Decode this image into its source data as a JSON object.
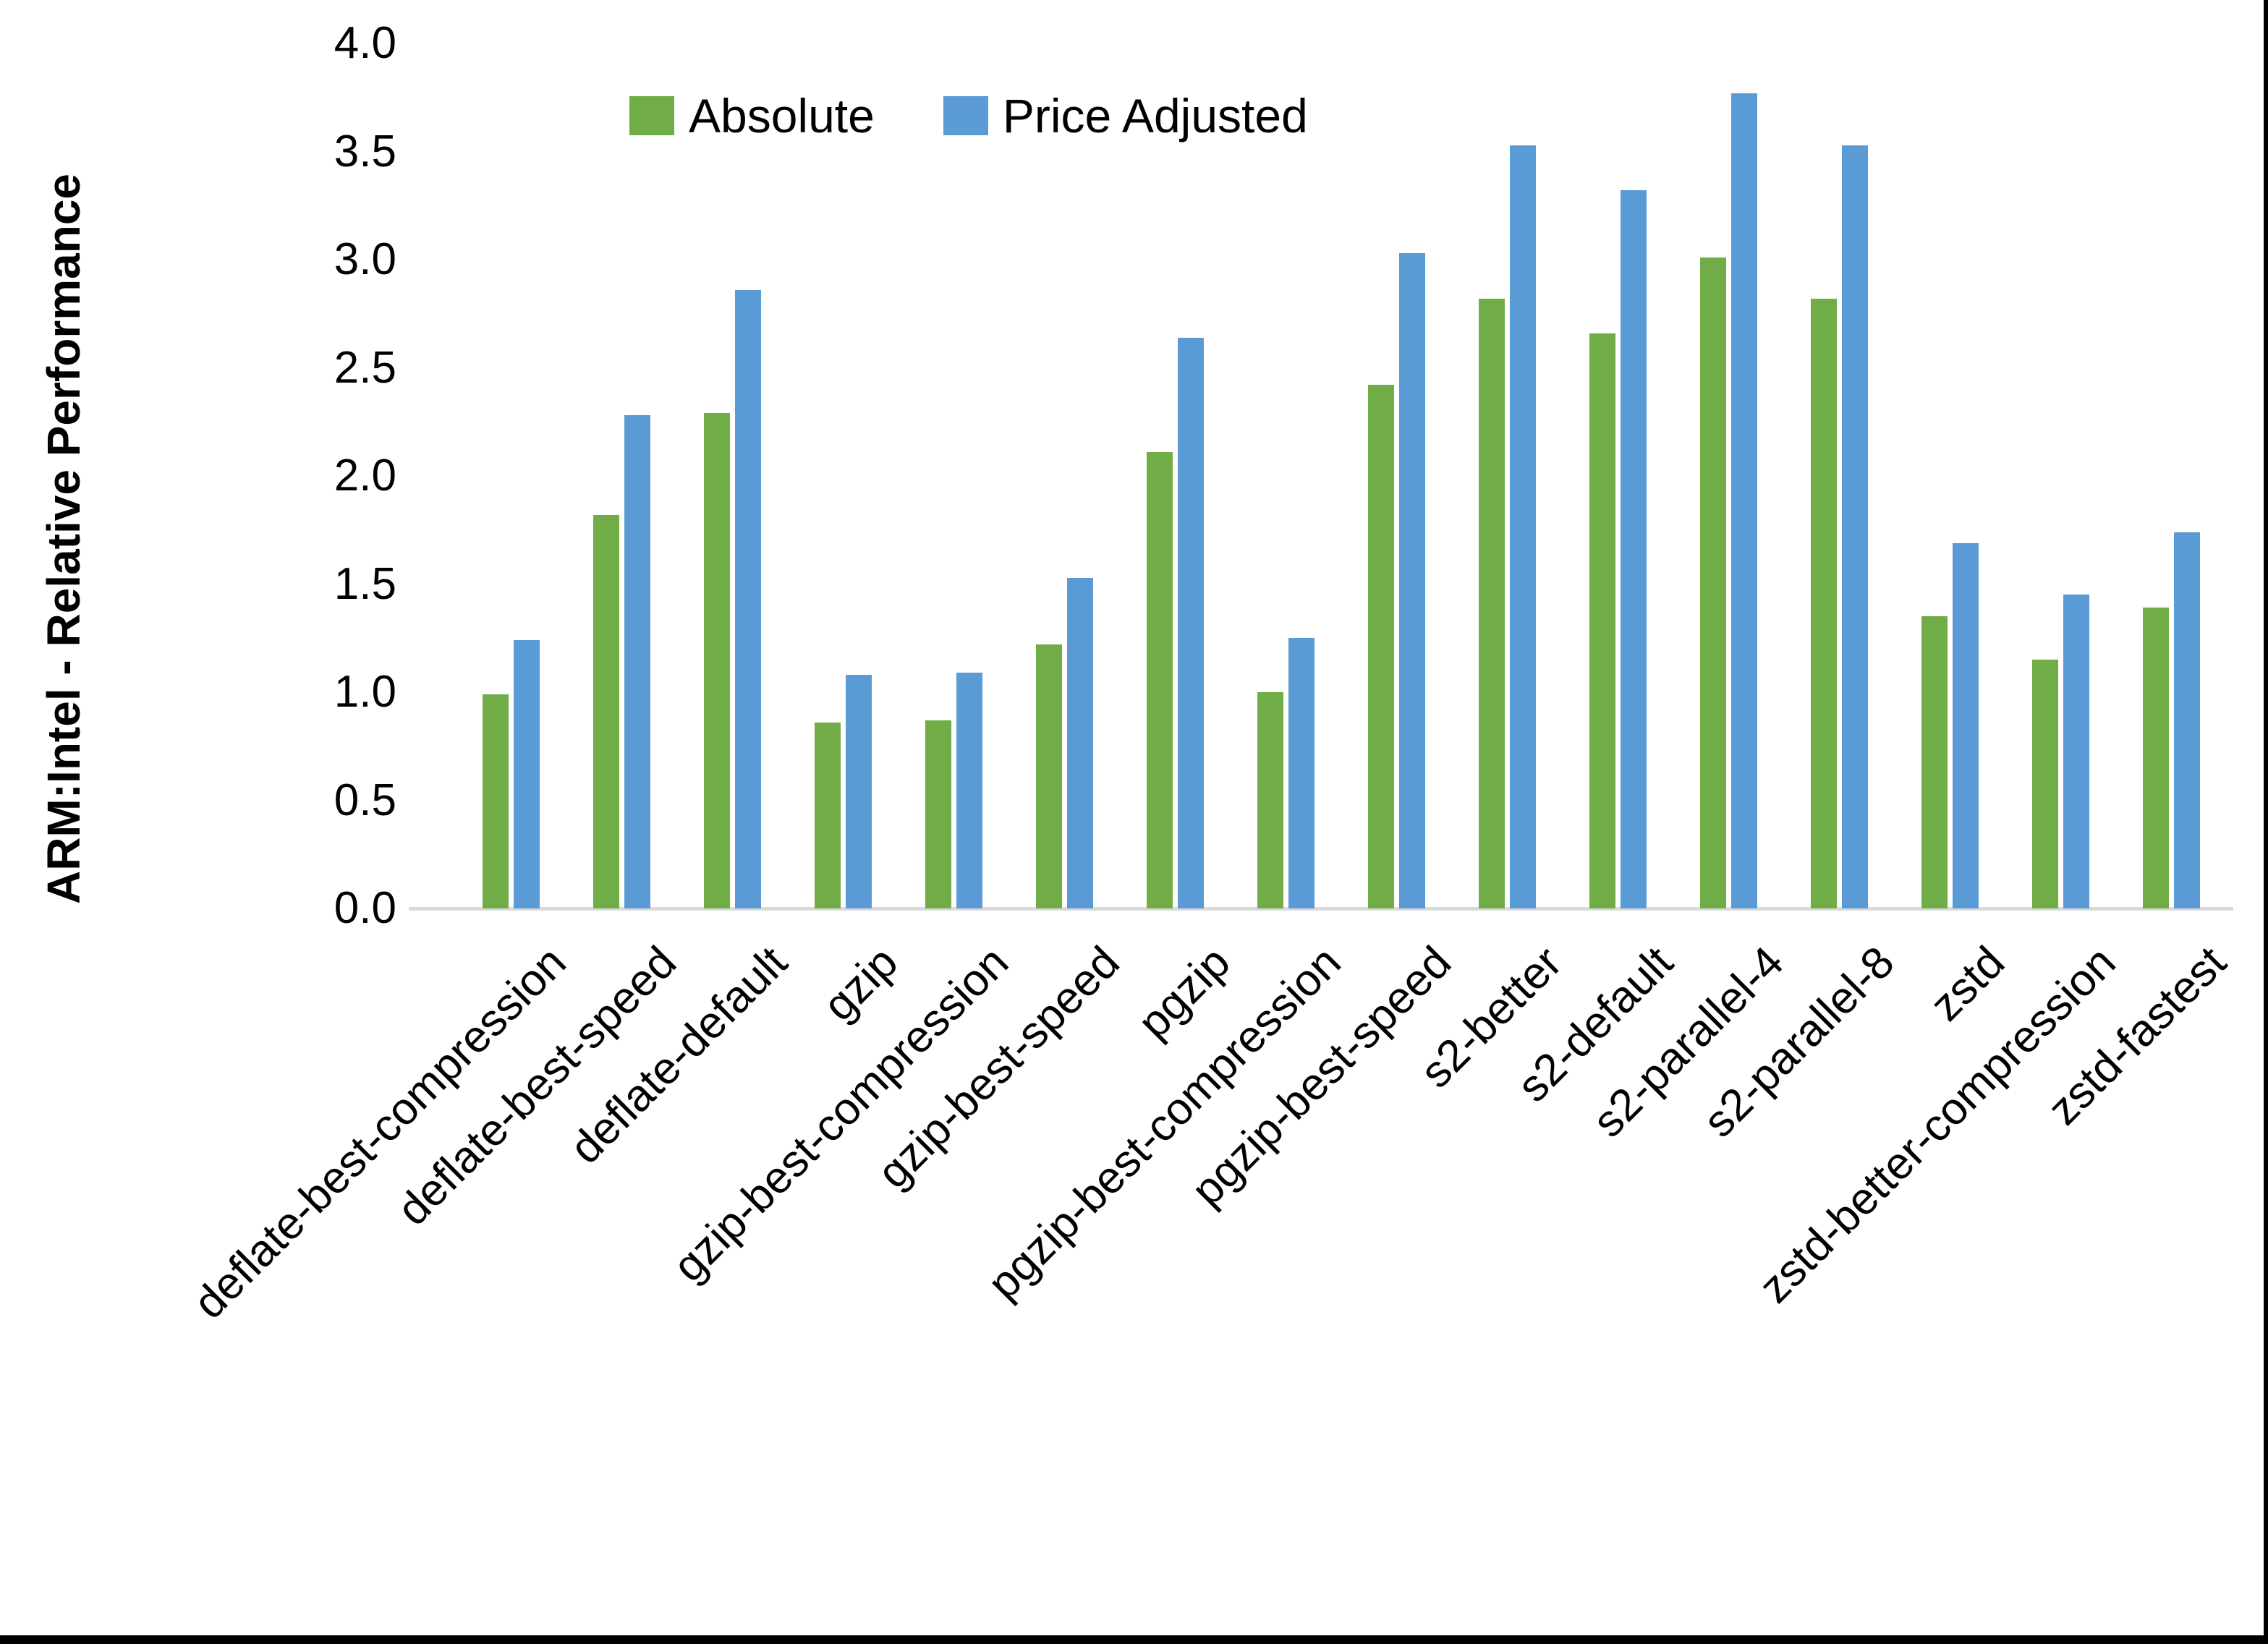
{
  "figure": {
    "background": "#ffffff",
    "border_color": "#000000",
    "axis_line_color": "#d9d9d9"
  },
  "y_axis": {
    "title": "ARM:Intel - Relative Performance",
    "tick_labels": [
      "0.0",
      "0.5",
      "1.0",
      "1.5",
      "2.0",
      "2.5",
      "3.0",
      "3.5",
      "4.0"
    ],
    "min": 0.0,
    "max": 4.0,
    "step": 0.5
  },
  "chart_data": {
    "type": "bar",
    "title": "",
    "xlabel": "",
    "ylabel": "ARM:Intel - Relative Performance",
    "ylim": [
      0.0,
      4.0
    ],
    "grid": false,
    "legend_position": "top",
    "categories": [
      "deflate-best-compression",
      "deflate-best-speed",
      "deflate-default",
      "gzip",
      "gzip-best-compression",
      "gzip-best-speed",
      "pgzip",
      "pgzip-best-compression",
      "pgzip-best-speed",
      "s2-better",
      "s2-default",
      "s2-parallel-4",
      "s2-parallel-8",
      "zstd",
      "zstd-better-compression",
      "zstd-fastest"
    ],
    "series": [
      {
        "name": "Absolute",
        "color": "#70AD47",
        "values": [
          0.99,
          1.82,
          2.29,
          0.86,
          0.87,
          1.22,
          2.11,
          1.0,
          2.42,
          2.82,
          2.66,
          3.01,
          2.82,
          1.35,
          1.15,
          1.39
        ]
      },
      {
        "name": "Price Adjusted",
        "color": "#5B9BD5",
        "values": [
          1.24,
          2.28,
          2.86,
          1.08,
          1.09,
          1.53,
          2.64,
          1.25,
          3.03,
          3.53,
          3.32,
          3.77,
          3.53,
          1.69,
          1.45,
          1.74
        ]
      }
    ]
  }
}
